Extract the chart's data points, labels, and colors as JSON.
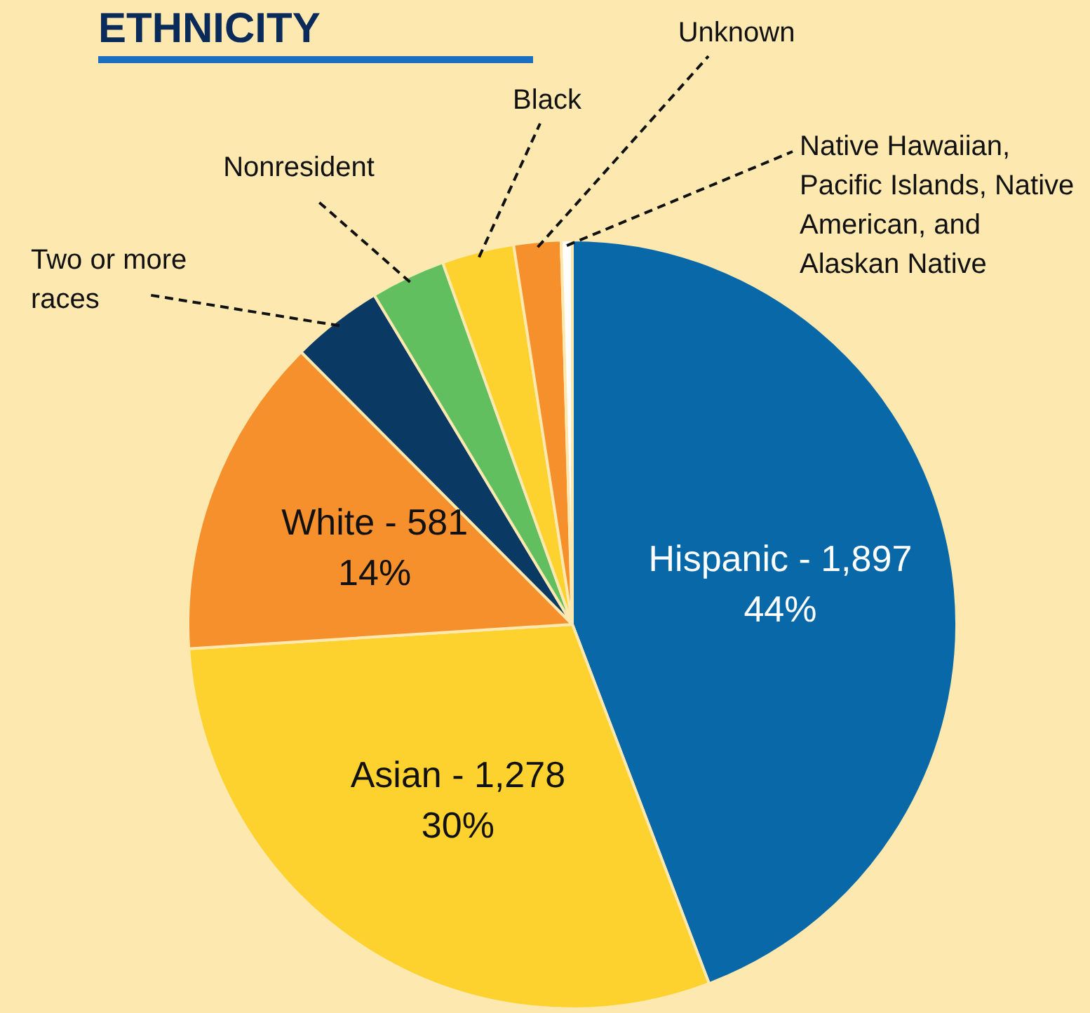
{
  "chart_data": {
    "type": "pie",
    "title": "ETHNICITY",
    "categories": [
      "Hispanic",
      "Asian",
      "White",
      "Two or more races",
      "Nonresident",
      "Black",
      "Unknown",
      "Native Hawaiian, Pacific Islands, Native American, and Alaskan Native"
    ],
    "values": [
      1897,
      1278,
      581,
      165,
      135,
      130,
      85,
      20
    ],
    "value_labels": [
      "1,897\n44%",
      "1,278\n30%",
      "581\n14%",
      null,
      null,
      null,
      null,
      null
    ],
    "colors": [
      "#0868a8",
      "#fdd22e",
      "#f5902d",
      "#0a3a64",
      "#62bf60",
      "#fdd22e",
      "#f5902d",
      "#ffffff"
    ],
    "legend": false
  }
}
